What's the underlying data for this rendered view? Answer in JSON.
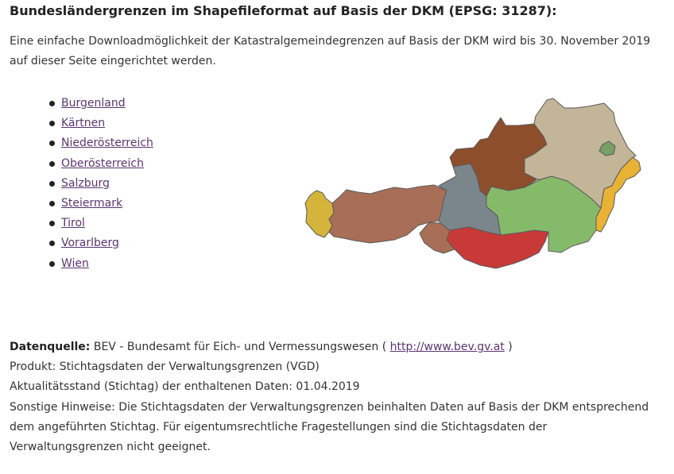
{
  "heading": "Bundesländergrenzen im Shapefileformat auf Basis der DKM (EPSG: 31287):",
  "intro": "Eine einfache Downloadmöglichkeit der Katastralgemeindegrenzen auf Basis der DKM wird bis 30. November 2019 auf dieser Seite eingerichtet werden.",
  "states": [
    {
      "label": "Burgenland"
    },
    {
      "label": "Kärtnen"
    },
    {
      "label": "Niederösterreich"
    },
    {
      "label": "Oberösterreich"
    },
    {
      "label": "Salzburg"
    },
    {
      "label": "Steiermark"
    },
    {
      "label": "Tirol"
    },
    {
      "label": "Vorarlberg"
    },
    {
      "label": "Wien"
    }
  ],
  "map": {
    "colors": {
      "vorarlberg": "#d4b43a",
      "tirol": "#a86e57",
      "osttirol": "#a86e57",
      "salzburg": "#7b868c",
      "kaernten": "#c73a38",
      "steiermark": "#86ba6b",
      "oberoesterreich": "#8d4e2c",
      "niederoesterreich": "#c3b598",
      "wien": "#76a065",
      "burgenland": "#e8b234",
      "border": "#5a5a5a"
    }
  },
  "footer": {
    "source_label": "Datenquelle:",
    "source_text_before": "BEV - Bundesamt für Eich- und Vermessungswesen (",
    "source_link": "http://www.bev.gv.at",
    "source_text_after": ")",
    "product": "Produkt: Stichtagsdaten der Verwaltungsgrenzen (VGD)",
    "date": "Aktualitätsstand (Stichtag) der enthaltenen Daten: 01.04.2019",
    "notes": "Sonstige Hinweise: Die Stichtagsdaten der Verwaltungsgrenzen beinhalten Daten auf Basis der DKM entsprechend dem angeführten Stichtag. Für eigentumsrechtliche Fragestellungen sind die Stichtagsdaten der Verwaltungsgrenzen nicht geeignet."
  }
}
